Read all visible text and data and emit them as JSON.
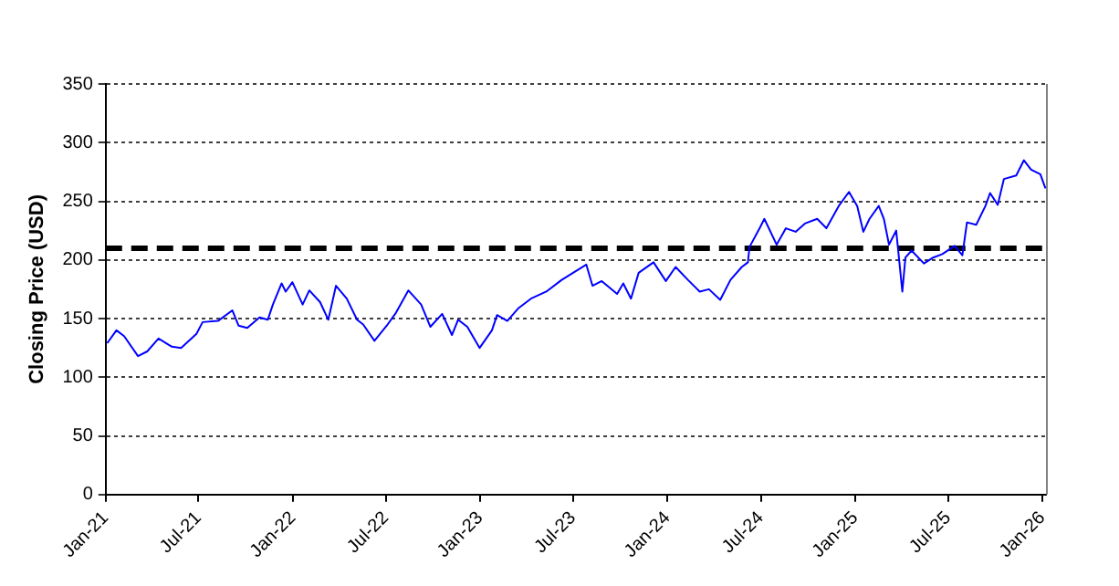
{
  "chart_data": {
    "type": "line",
    "ylabel": "Closing Price (USD)",
    "x": [
      "2021-01-04",
      "2021-01-22",
      "2021-02-06",
      "2021-03-05",
      "2021-03-23",
      "2021-04-14",
      "2021-05-10",
      "2021-05-28",
      "2021-06-27",
      "2021-07-09",
      "2021-08-08",
      "2021-09-05",
      "2021-09-17",
      "2021-10-04",
      "2021-10-28",
      "2021-11-13",
      "2021-11-23",
      "2021-12-10",
      "2021-12-18",
      "2021-12-31",
      "2022-01-20",
      "2022-02-02",
      "2022-02-23",
      "2022-03-11",
      "2022-03-26",
      "2022-04-16",
      "2022-05-06",
      "2022-05-18",
      "2022-06-09",
      "2022-07-03",
      "2022-07-21",
      "2022-08-14",
      "2022-09-08",
      "2022-09-26",
      "2022-10-19",
      "2022-11-07",
      "2022-11-19",
      "2022-12-07",
      "2022-12-31",
      "2023-01-24",
      "2023-02-03",
      "2023-02-23",
      "2023-03-17",
      "2023-04-10",
      "2023-05-10",
      "2023-06-09",
      "2023-07-27",
      "2023-08-08",
      "2023-08-26",
      "2023-09-25",
      "2023-10-07",
      "2023-10-22",
      "2023-11-06",
      "2023-12-05",
      "2023-12-29",
      "2024-01-17",
      "2024-02-10",
      "2024-03-04",
      "2024-03-22",
      "2024-04-13",
      "2024-05-03",
      "2024-05-25",
      "2024-06-06",
      "2024-06-09",
      "2024-06-30",
      "2024-07-08",
      "2024-08-01",
      "2024-08-19",
      "2024-09-07",
      "2024-09-25",
      "2024-10-19",
      "2024-11-06",
      "2024-11-30",
      "2024-12-20",
      "2025-01-05",
      "2025-01-17",
      "2025-01-29",
      "2025-02-16",
      "2025-02-26",
      "2025-03-08",
      "2025-03-22",
      "2025-04-03",
      "2025-04-09",
      "2025-04-21",
      "2025-05-15",
      "2025-06-02",
      "2025-06-20",
      "2025-07-14",
      "2025-07-29",
      "2025-08-07",
      "2025-08-25",
      "2025-09-12",
      "2025-09-21",
      "2025-10-06",
      "2025-10-18",
      "2025-11-11",
      "2025-11-26",
      "2025-12-10",
      "2025-12-28",
      "2026-01-07"
    ],
    "series": [
      {
        "color": "#0000ff",
        "values": [
          129,
          140,
          135,
          118,
          122,
          133,
          126,
          125,
          137,
          147,
          148,
          157,
          144,
          142,
          151,
          149,
          162,
          180,
          173,
          181,
          162,
          174,
          164,
          149,
          178,
          167,
          149,
          145,
          131,
          144,
          155,
          174,
          162,
          143,
          154,
          136,
          149,
          143,
          125,
          140,
          153,
          148,
          159,
          167,
          173,
          183,
          196,
          178,
          182,
          171,
          180,
          167,
          189,
          198,
          182,
          194,
          183,
          173,
          175,
          166,
          183,
          194,
          198,
          211,
          228,
          235,
          213,
          227,
          224,
          231,
          235,
          227,
          246,
          258,
          246,
          224,
          235,
          246,
          235,
          213,
          225,
          173,
          202,
          208,
          197,
          202,
          205,
          212,
          204,
          232,
          230,
          246,
          257,
          247,
          269,
          272,
          285,
          277,
          273,
          261
        ]
      }
    ],
    "xlim": [
      "2021-01-01",
      "2026-01-08"
    ],
    "xticks": [
      {
        "value": "2021-01-01",
        "label": "Jan-21"
      },
      {
        "value": "2021-07-01",
        "label": "Jul-21"
      },
      {
        "value": "2022-01-01",
        "label": "Jan-22"
      },
      {
        "value": "2022-07-01",
        "label": "Jul-22"
      },
      {
        "value": "2023-01-01",
        "label": "Jan-23"
      },
      {
        "value": "2023-07-01",
        "label": "Jul-23"
      },
      {
        "value": "2024-01-01",
        "label": "Jan-24"
      },
      {
        "value": "2024-07-01",
        "label": "Jul-24"
      },
      {
        "value": "2025-01-01",
        "label": "Jan-25"
      },
      {
        "value": "2025-07-01",
        "label": "Jul-25"
      },
      {
        "value": "2026-01-01",
        "label": "Jan-26"
      }
    ],
    "ylim": [
      0,
      350
    ],
    "yticks": [
      0,
      50,
      100,
      150,
      200,
      250,
      300,
      350
    ],
    "ref_lines": [
      {
        "axis": "y",
        "value": 210,
        "color": "#000000",
        "line_style": "dashed"
      }
    ],
    "grid": "y",
    "legend": false,
    "marker": "none",
    "line_style": "solid"
  }
}
